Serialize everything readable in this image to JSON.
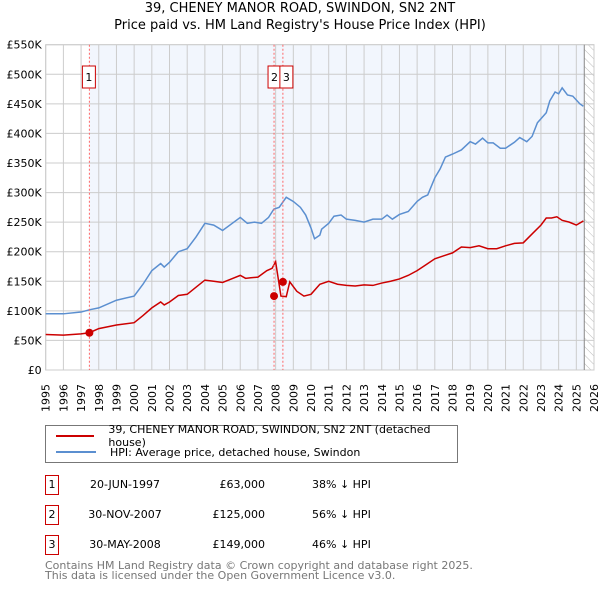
{
  "title": "39, CHENEY MANOR ROAD, SWINDON, SN2 2NT",
  "subtitle": "Price paid vs. HM Land Registry's House Price Index (HPI)",
  "legend": [
    {
      "label": "39, CHENEY MANOR ROAD, SWINDON, SN2 2NT (detached house)",
      "color": "#cc0000"
    },
    {
      "label": "HPI: Average price, detached house, Swindon",
      "color": "#5b8fd0"
    }
  ],
  "sales": [
    {
      "num": "1",
      "date": "20-JUN-1997",
      "price": "£63,000",
      "hpi": "38% ↓ HPI",
      "x": 1997.47,
      "y": 63
    },
    {
      "num": "2",
      "date": "30-NOV-2007",
      "price": "£125,000",
      "hpi": "56% ↓ HPI",
      "x": 2007.91,
      "y": 125
    },
    {
      "num": "3",
      "date": "30-MAY-2008",
      "price": "£149,000",
      "hpi": "46% ↓ HPI",
      "x": 2008.41,
      "y": 149
    }
  ],
  "footer": [
    "Contains HM Land Registry data © Crown copyright and database right 2025.",
    "This data is licensed under the Open Government Licence v3.0."
  ],
  "chart_data": {
    "type": "line",
    "title": "39, CHENEY MANOR ROAD, SWINDON, SN2 2NT",
    "xlim": [
      1995,
      2026
    ],
    "ylim": [
      0,
      550
    ],
    "yticks": [
      0,
      50,
      100,
      150,
      200,
      250,
      300,
      350,
      400,
      450,
      500,
      550
    ],
    "ytick_labels": [
      "£0",
      "£50K",
      "£100K",
      "£150K",
      "£200K",
      "£250K",
      "£300K",
      "£350K",
      "£400K",
      "£450K",
      "£500K",
      "£550K"
    ],
    "xticks": [
      "1995",
      "1996",
      "1997",
      "1998",
      "1999",
      "2000",
      "2001",
      "2002",
      "2003",
      "2004",
      "2005",
      "2006",
      "2007",
      "2008",
      "2009",
      "2010",
      "2011",
      "2012",
      "2013",
      "2014",
      "2015",
      "2016",
      "2017",
      "2018",
      "2019",
      "2020",
      "2021",
      "2022",
      "2023",
      "2024",
      "2025",
      "2026"
    ],
    "forecast_from": 2025.45,
    "series": [
      {
        "name": "HPI",
        "color": "#5b8fd0",
        "points": [
          [
            1995,
            95
          ],
          [
            1996,
            95
          ],
          [
            1997,
            98
          ],
          [
            1997.5,
            102
          ],
          [
            1998,
            105
          ],
          [
            1999,
            118
          ],
          [
            2000,
            125
          ],
          [
            2000.5,
            145
          ],
          [
            2001,
            168
          ],
          [
            2001.5,
            180
          ],
          [
            2001.7,
            174
          ],
          [
            2002,
            182
          ],
          [
            2002.5,
            200
          ],
          [
            2003,
            205
          ],
          [
            2003.5,
            225
          ],
          [
            2004,
            248
          ],
          [
            2004.5,
            245
          ],
          [
            2005,
            236
          ],
          [
            2006,
            258
          ],
          [
            2006.4,
            248
          ],
          [
            2006.8,
            250
          ],
          [
            2007.2,
            248
          ],
          [
            2007.6,
            258
          ],
          [
            2007.9,
            272
          ],
          [
            2008.2,
            275
          ],
          [
            2008.6,
            292
          ],
          [
            2009,
            285
          ],
          [
            2009.4,
            275
          ],
          [
            2009.7,
            262
          ],
          [
            2010,
            240
          ],
          [
            2010.2,
            222
          ],
          [
            2010.5,
            228
          ]
        ],
        "points2": [
          [
            2010.6,
            238
          ],
          [
            2011,
            248
          ],
          [
            2011.3,
            260
          ],
          [
            2011.7,
            262
          ],
          [
            2012,
            255
          ],
          [
            2012.5,
            253
          ],
          [
            2013,
            250
          ],
          [
            2013.5,
            255
          ],
          [
            2014,
            255
          ],
          [
            2014.3,
            262
          ],
          [
            2014.6,
            255
          ],
          [
            2015,
            263
          ],
          [
            2015.5,
            268
          ],
          [
            2016,
            285
          ],
          [
            2016.3,
            292
          ],
          [
            2016.6,
            296
          ],
          [
            2017,
            325
          ],
          [
            2017.3,
            340
          ],
          [
            2017.6,
            360
          ],
          [
            2018,
            365
          ],
          [
            2018.5,
            372
          ],
          [
            2019,
            386
          ],
          [
            2019.3,
            382
          ],
          [
            2019.7,
            392
          ],
          [
            2020,
            384
          ],
          [
            2020.3,
            384
          ],
          [
            2020.7,
            375
          ],
          [
            2021,
            375
          ],
          [
            2021.5,
            385
          ],
          [
            2021.8,
            393
          ],
          [
            2022.2,
            386
          ],
          [
            2022.5,
            395
          ],
          [
            2022.8,
            418
          ],
          [
            2023.3,
            435
          ],
          [
            2023.5,
            455
          ],
          [
            2023.8,
            470
          ],
          [
            2024,
            467
          ],
          [
            2024.2,
            477
          ],
          [
            2024.5,
            465
          ],
          [
            2024.8,
            463
          ],
          [
            2025.2,
            450
          ],
          [
            2025.4,
            446
          ]
        ]
      },
      {
        "name": "Property",
        "color": "#cc0000",
        "points": [
          [
            1995,
            60
          ],
          [
            1996,
            59
          ],
          [
            1997,
            61
          ],
          [
            1997.47,
            63
          ],
          [
            1998,
            70
          ],
          [
            1999,
            76
          ],
          [
            2000,
            80
          ],
          [
            2000.5,
            92
          ],
          [
            2001,
            105
          ],
          [
            2001.5,
            115
          ],
          [
            2001.7,
            110
          ],
          [
            2002,
            115
          ],
          [
            2002.5,
            126
          ],
          [
            2003,
            128
          ],
          [
            2003.5,
            140
          ],
          [
            2004,
            152
          ],
          [
            2004.5,
            150
          ],
          [
            2005,
            148
          ],
          [
            2005.5,
            154
          ],
          [
            2006,
            160
          ],
          [
            2006.3,
            155
          ],
          [
            2006.6,
            156
          ],
          [
            2007,
            157
          ],
          [
            2007.5,
            168
          ],
          [
            2007.8,
            172
          ],
          [
            2008,
            183
          ],
          [
            2008.3,
            125
          ],
          [
            2008.6,
            124
          ],
          [
            2008.8,
            149
          ],
          [
            2009.2,
            133
          ],
          [
            2009.6,
            125
          ],
          [
            2010,
            128
          ],
          [
            2010.5,
            145
          ],
          [
            2011,
            150
          ],
          [
            2011.5,
            145
          ],
          [
            2012,
            143
          ],
          [
            2012.5,
            142
          ],
          [
            2013,
            144
          ],
          [
            2013.5,
            143
          ],
          [
            2014,
            147
          ],
          [
            2014.5,
            150
          ],
          [
            2015,
            154
          ],
          [
            2015.5,
            160
          ],
          [
            2016,
            168
          ],
          [
            2016.5,
            178
          ],
          [
            2017,
            188
          ],
          [
            2017.5,
            193
          ],
          [
            2018,
            198
          ],
          [
            2018.5,
            208
          ],
          [
            2019,
            207
          ],
          [
            2019.5,
            210
          ],
          [
            2020,
            205
          ],
          [
            2020.5,
            205
          ],
          [
            2021,
            210
          ],
          [
            2021.5,
            214
          ],
          [
            2022,
            215
          ],
          [
            2022.5,
            230
          ],
          [
            2023,
            245
          ],
          [
            2023.3,
            257
          ],
          [
            2023.6,
            257
          ],
          [
            2023.9,
            259
          ],
          [
            2024.2,
            253
          ],
          [
            2024.6,
            250
          ],
          [
            2025,
            245
          ],
          [
            2025.4,
            252
          ]
        ]
      }
    ]
  }
}
